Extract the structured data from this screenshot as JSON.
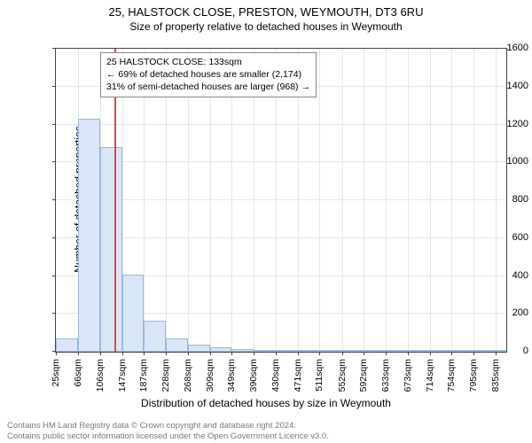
{
  "title": "25, HALSTOCK CLOSE, PRESTON, WEYMOUTH, DT3 6RU",
  "subtitle": "Size of property relative to detached houses in Weymouth",
  "ylabel": "Number of detached properties",
  "xlabel": "Distribution of detached houses by size in Weymouth",
  "chart": {
    "type": "histogram",
    "background_color": "#ffffff",
    "grid_color": "#e6e6e6",
    "border_color": "#444444",
    "ylim": [
      0,
      1600
    ],
    "ytick_step": 200,
    "xticks": [
      "25sqm",
      "66sqm",
      "106sqm",
      "147sqm",
      "187sqm",
      "228sqm",
      "268sqm",
      "309sqm",
      "349sqm",
      "390sqm",
      "430sqm",
      "471sqm",
      "511sqm",
      "552sqm",
      "592sqm",
      "633sqm",
      "673sqm",
      "714sqm",
      "754sqm",
      "795sqm",
      "835sqm"
    ],
    "x_range": [
      25,
      855
    ],
    "bars": [
      {
        "start": 25,
        "end": 66,
        "value": 70
      },
      {
        "start": 66,
        "end": 106,
        "value": 1230
      },
      {
        "start": 106,
        "end": 147,
        "value": 1080
      },
      {
        "start": 147,
        "end": 187,
        "value": 405
      },
      {
        "start": 187,
        "end": 228,
        "value": 165
      },
      {
        "start": 228,
        "end": 268,
        "value": 70
      },
      {
        "start": 268,
        "end": 309,
        "value": 38
      },
      {
        "start": 309,
        "end": 349,
        "value": 22
      },
      {
        "start": 349,
        "end": 390,
        "value": 14
      },
      {
        "start": 390,
        "end": 430,
        "value": 10
      },
      {
        "start": 430,
        "end": 471,
        "value": 4
      },
      {
        "start": 471,
        "end": 511,
        "value": 3
      },
      {
        "start": 511,
        "end": 552,
        "value": 3
      },
      {
        "start": 552,
        "end": 592,
        "value": 2
      },
      {
        "start": 592,
        "end": 633,
        "value": 2
      },
      {
        "start": 633,
        "end": 673,
        "value": 1
      },
      {
        "start": 673,
        "end": 714,
        "value": 1
      },
      {
        "start": 714,
        "end": 754,
        "value": 1
      },
      {
        "start": 754,
        "end": 795,
        "value": 0
      },
      {
        "start": 795,
        "end": 835,
        "value": 1
      },
      {
        "start": 835,
        "end": 855,
        "value": 0
      }
    ],
    "bar_fill": "#d9e6f7",
    "bar_edge": "#98b8e0",
    "marker": {
      "x": 133,
      "color": "#d84a4a"
    },
    "label_fontsize": 12,
    "tick_fontsize": 11
  },
  "annotation": {
    "lines": [
      "25 HALSTOCK CLOSE: 133sqm",
      "← 69% of detached houses are smaller (2,174)",
      "31% of semi-detached houses are larger (968) →"
    ]
  },
  "footer": {
    "line1": "Contains HM Land Registry data © Crown copyright and database right 2024.",
    "line2": "Contains public sector information licensed under the Open Government Licence v3.0.",
    "color": "#7a7a7a"
  }
}
